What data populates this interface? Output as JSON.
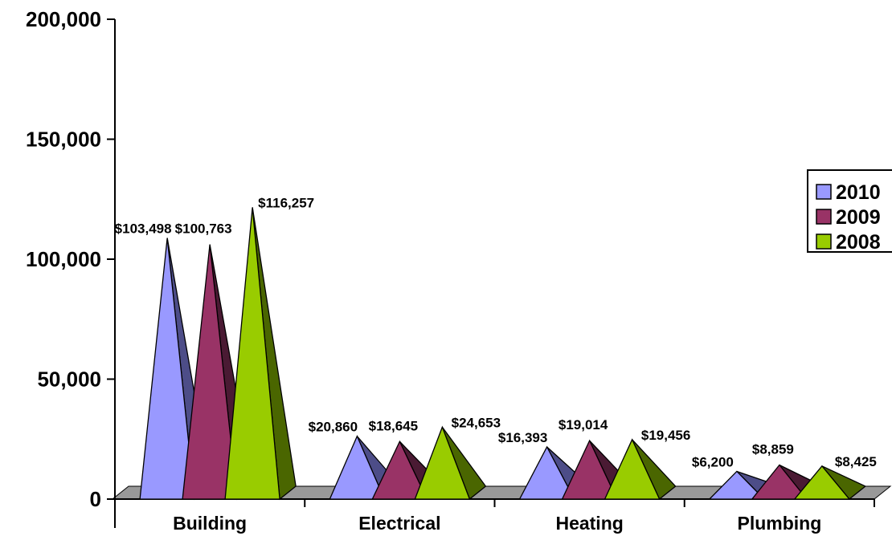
{
  "chart_data": {
    "type": "bar",
    "bar_shape": "pyramid",
    "categories": [
      "Building",
      "Electrical",
      "Heating",
      "Plumbing"
    ],
    "series": [
      {
        "name": "2010",
        "values": [
          103498,
          20860,
          16393,
          6200
        ],
        "labels": [
          "$103,498",
          "$20,860",
          "$16,393",
          "$6,200"
        ],
        "color": "#9999ff",
        "shade": "#4d4d88"
      },
      {
        "name": "2009",
        "values": [
          100763,
          18645,
          19014,
          8859
        ],
        "labels": [
          "$100,763",
          "$18,645",
          "$19,014",
          "$8,859"
        ],
        "color": "#993366",
        "shade": "#4a1a33"
      },
      {
        "name": "2008",
        "values": [
          116257,
          24653,
          19456,
          8425
        ],
        "labels": [
          "$116,257",
          "$24,653",
          "$19,456",
          "$8,425"
        ],
        "color": "#99cc00",
        "shade": "#4a6600"
      }
    ],
    "y_ticks": [
      "0",
      "50,000",
      "100,000",
      "150,000",
      "200,000"
    ],
    "ylim": [
      0,
      200000
    ],
    "title": "",
    "xlabel": "",
    "ylabel": "",
    "legend": "right",
    "grid": false,
    "floor_color": "#999999"
  }
}
